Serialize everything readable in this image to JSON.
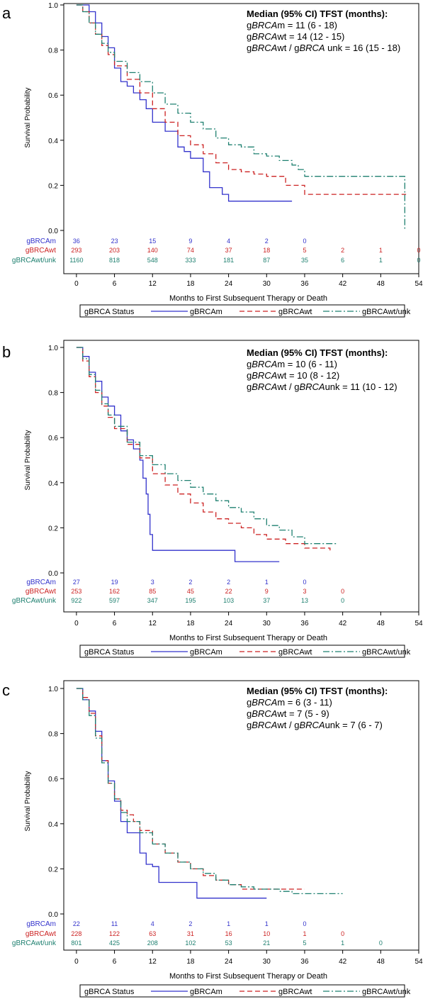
{
  "colors": {
    "gBRCAm": "#3333cc",
    "gBRCAwt": "#cc2222",
    "gBRCAwt_unk": "#1f8070"
  },
  "chart_data": [
    {
      "panel_letter": "a",
      "type": "line",
      "step": true,
      "ylabel": "Survival Probability",
      "xlabel": "Months to First Subsequent Therapy or Death",
      "xlim": [
        -2,
        54
      ],
      "ylim": [
        0,
        1
      ],
      "x_ticks": [
        0,
        6,
        12,
        18,
        24,
        30,
        36,
        42,
        48,
        54
      ],
      "y_ticks": [
        0.0,
        0.2,
        0.4,
        0.6,
        0.8,
        1.0
      ],
      "y_tick_labels": [
        "0.0",
        "0.2",
        "0.4",
        "0.6",
        "0.8",
        "1.0"
      ],
      "median_box": {
        "heading": "Median (95% CI) TFST (months):",
        "lines": [
          [
            "g",
            "BRCA",
            "m = 11 (6 - 18)"
          ],
          [
            "g",
            "BRCA",
            "wt = 14 (12 - 15)"
          ],
          [
            "g",
            "BRCA",
            "wt / g",
            "BRCA",
            " unk = 16 (15 - 18)"
          ]
        ]
      },
      "risk_table": {
        "times": [
          0,
          6,
          12,
          18,
          24,
          30,
          36,
          42,
          48,
          54
        ],
        "rows": [
          {
            "label": "gBRCAm",
            "key": "gBRCAm",
            "values": [
              "36",
              "23",
              "15",
              "9",
              "4",
              "2",
              "0"
            ]
          },
          {
            "label": "gBRCAwt",
            "key": "gBRCAwt",
            "values": [
              "293",
              "203",
              "140",
              "74",
              "37",
              "18",
              "5",
              "2",
              "1",
              "0"
            ]
          },
          {
            "label": "gBRCAwt/unk",
            "key": "gBRCAwt_unk",
            "values": [
              "1160",
              "818",
              "548",
              "333",
              "181",
              "87",
              "35",
              "6",
              "1",
              "0"
            ]
          }
        ]
      },
      "series": [
        {
          "name": "gBRCAm",
          "key": "gBRCAm",
          "dash": "",
          "x": [
            0,
            2,
            3,
            4,
            5,
            6,
            7,
            8,
            9,
            10,
            11,
            12,
            13,
            14,
            15,
            16,
            17,
            18,
            19,
            20,
            21,
            22,
            23,
            24,
            34
          ],
          "y": [
            1.0,
            0.97,
            0.92,
            0.86,
            0.81,
            0.72,
            0.66,
            0.64,
            0.61,
            0.58,
            0.54,
            0.48,
            0.48,
            0.44,
            0.44,
            0.37,
            0.35,
            0.32,
            0.32,
            0.26,
            0.19,
            0.19,
            0.16,
            0.13,
            0.13
          ]
        },
        {
          "name": "gBRCAwt",
          "key": "gBRCAwt",
          "dash": "7,4",
          "x": [
            0,
            1,
            2,
            3,
            4,
            5,
            6,
            8,
            10,
            12,
            14,
            16,
            18,
            20,
            22,
            24,
            26,
            28,
            30,
            33,
            36,
            52
          ],
          "y": [
            1.0,
            0.97,
            0.92,
            0.87,
            0.82,
            0.78,
            0.73,
            0.67,
            0.61,
            0.54,
            0.48,
            0.42,
            0.38,
            0.34,
            0.3,
            0.27,
            0.26,
            0.25,
            0.24,
            0.2,
            0.16,
            0.16
          ]
        },
        {
          "name": "gBRCAwt/unk",
          "key": "gBRCAwt_unk",
          "dash": "9,3,2,3",
          "x": [
            0,
            1,
            2,
            3,
            4,
            5,
            6,
            8,
            10,
            12,
            14,
            16,
            18,
            20,
            22,
            24,
            26,
            28,
            30,
            32,
            34,
            35,
            36,
            51.8,
            51.8
          ],
          "y": [
            1.0,
            0.97,
            0.92,
            0.87,
            0.83,
            0.79,
            0.75,
            0.7,
            0.66,
            0.61,
            0.56,
            0.52,
            0.48,
            0.45,
            0.41,
            0.38,
            0.37,
            0.34,
            0.33,
            0.31,
            0.29,
            0.27,
            0.24,
            0.24,
            0.0
          ]
        }
      ]
    },
    {
      "panel_letter": "b",
      "type": "line",
      "step": true,
      "ylabel": "Survival Probability",
      "xlabel": "Months to First Subsequent Therapy or Death",
      "xlim": [
        -2,
        54
      ],
      "ylim": [
        0,
        1
      ],
      "x_ticks": [
        0,
        6,
        12,
        18,
        24,
        30,
        36,
        42,
        48,
        54
      ],
      "y_ticks": [
        0.0,
        0.2,
        0.4,
        0.6,
        0.8,
        1.0
      ],
      "y_tick_labels": [
        "0.0",
        "0.2",
        "0.4",
        "0.6",
        "0.8",
        "1.0"
      ],
      "median_box": {
        "heading": "Median (95% CI) TFST (months):",
        "lines": [
          [
            "g",
            "BRCA",
            "m = 10 (6 - 11)"
          ],
          [
            "g",
            "BRCA",
            "wt = 10 (8 - 12)"
          ],
          [
            "g",
            "BRCA",
            "wt / g",
            "BRCA",
            "unk = 11 (10 - 12)"
          ]
        ]
      },
      "risk_table": {
        "times": [
          0,
          6,
          12,
          18,
          24,
          30,
          36,
          42,
          48,
          54
        ],
        "rows": [
          {
            "label": "gBRCAm",
            "key": "gBRCAm",
            "values": [
              "27",
              "19",
              "3",
              "2",
              "2",
              "1",
              "0"
            ]
          },
          {
            "label": "gBRCAwt",
            "key": "gBRCAwt",
            "values": [
              "253",
              "162",
              "85",
              "45",
              "22",
              "9",
              "3",
              "0"
            ]
          },
          {
            "label": "gBRCAwt/unk",
            "key": "gBRCAwt_unk",
            "values": [
              "922",
              "597",
              "347",
              "195",
              "103",
              "37",
              "13",
              "0"
            ]
          }
        ]
      },
      "series": [
        {
          "name": "gBRCAm",
          "key": "gBRCAm",
          "dash": "",
          "x": [
            0,
            1,
            2,
            3,
            4,
            5,
            6,
            7,
            8,
            9,
            10,
            10.5,
            11,
            11.3,
            11.6,
            12,
            25,
            32
          ],
          "y": [
            1.0,
            0.96,
            0.89,
            0.85,
            0.78,
            0.74,
            0.7,
            0.63,
            0.59,
            0.55,
            0.5,
            0.42,
            0.35,
            0.26,
            0.17,
            0.1,
            0.05,
            0.05
          ]
        },
        {
          "name": "gBRCAwt",
          "key": "gBRCAwt",
          "dash": "7,4",
          "x": [
            0,
            1,
            2,
            3,
            4,
            5,
            6,
            8,
            10,
            12,
            14,
            16,
            18,
            20,
            22,
            24,
            26,
            28,
            30,
            33,
            36,
            40
          ],
          "y": [
            1.0,
            0.94,
            0.87,
            0.8,
            0.74,
            0.69,
            0.64,
            0.57,
            0.51,
            0.44,
            0.39,
            0.35,
            0.31,
            0.27,
            0.24,
            0.22,
            0.2,
            0.17,
            0.15,
            0.13,
            0.11,
            0.1
          ]
        },
        {
          "name": "gBRCAwt/unk",
          "key": "gBRCAwt_unk",
          "dash": "9,3,2,3",
          "x": [
            0,
            1,
            2,
            3,
            4,
            5,
            6,
            8,
            10,
            12,
            14,
            16,
            18,
            20,
            22,
            24,
            26,
            28,
            30,
            32,
            34,
            36,
            41
          ],
          "y": [
            1.0,
            0.95,
            0.88,
            0.81,
            0.75,
            0.7,
            0.65,
            0.58,
            0.52,
            0.48,
            0.44,
            0.41,
            0.38,
            0.35,
            0.32,
            0.29,
            0.27,
            0.24,
            0.21,
            0.19,
            0.16,
            0.13,
            0.13
          ]
        }
      ]
    },
    {
      "panel_letter": "c",
      "type": "line",
      "step": true,
      "ylabel": "Survival Probability",
      "xlabel": "Months to First Subsequent Therapy or Death",
      "xlim": [
        -2,
        54
      ],
      "ylim": [
        0,
        1
      ],
      "x_ticks": [
        0,
        6,
        12,
        18,
        24,
        30,
        36,
        42,
        48,
        54
      ],
      "y_ticks": [
        0.0,
        0.2,
        0.4,
        0.6,
        0.8,
        1.0
      ],
      "y_tick_labels": [
        "0.0",
        "0.2",
        "0.4",
        "0.6",
        "0.8",
        "1.0"
      ],
      "median_box": {
        "heading": "Median (95% CI) TFST (months):",
        "lines": [
          [
            "g",
            "BRCA",
            "m = 6 (3 - 11)"
          ],
          [
            "g",
            "BRCA",
            "wt = 7 (5 - 9)"
          ],
          [
            "g",
            "BRCA",
            "wt / g",
            "BRCA",
            "unk = 7 (6 - 7)"
          ]
        ]
      },
      "risk_table": {
        "times": [
          0,
          6,
          12,
          18,
          24,
          30,
          36,
          42,
          48,
          54
        ],
        "rows": [
          {
            "label": "gBRCAm",
            "key": "gBRCAm",
            "values": [
              "22",
              "11",
              "4",
              "2",
              "1",
              "1",
              "0"
            ]
          },
          {
            "label": "gBRCAwt",
            "key": "gBRCAwt",
            "values": [
              "228",
              "122",
              "63",
              "31",
              "16",
              "10",
              "1",
              "0"
            ]
          },
          {
            "label": "gBRCAwt/unk",
            "key": "gBRCAwt_unk",
            "values": [
              "801",
              "425",
              "208",
              "102",
              "53",
              "21",
              "5",
              "1",
              "0"
            ]
          }
        ]
      },
      "series": [
        {
          "name": "gBRCAm",
          "key": "gBRCAm",
          "dash": "",
          "x": [
            0,
            1,
            2,
            3,
            4,
            5,
            6,
            7,
            8,
            9,
            10,
            11,
            12,
            13,
            19,
            30
          ],
          "y": [
            1.0,
            0.95,
            0.9,
            0.81,
            0.68,
            0.59,
            0.5,
            0.41,
            0.36,
            0.36,
            0.27,
            0.22,
            0.21,
            0.14,
            0.07,
            0.07
          ]
        },
        {
          "name": "gBRCAwt",
          "key": "gBRCAwt",
          "dash": "7,4",
          "x": [
            0,
            1,
            2,
            3,
            4,
            5,
            6,
            7,
            8,
            9,
            10,
            12,
            14,
            16,
            18,
            20,
            22,
            24,
            26,
            28,
            30,
            36
          ],
          "y": [
            1.0,
            0.96,
            0.89,
            0.79,
            0.68,
            0.58,
            0.51,
            0.46,
            0.44,
            0.41,
            0.37,
            0.31,
            0.27,
            0.23,
            0.2,
            0.17,
            0.15,
            0.13,
            0.11,
            0.11,
            0.11,
            0.11
          ]
        },
        {
          "name": "gBRCAwt/unk",
          "key": "gBRCAwt_unk",
          "dash": "9,3,2,3",
          "x": [
            0,
            1,
            2,
            3,
            4,
            5,
            6,
            7,
            8,
            10,
            12,
            14,
            16,
            18,
            20,
            22,
            24,
            26,
            28,
            30,
            32,
            34,
            42
          ],
          "y": [
            1.0,
            0.95,
            0.88,
            0.78,
            0.67,
            0.58,
            0.51,
            0.45,
            0.41,
            0.36,
            0.31,
            0.27,
            0.23,
            0.2,
            0.18,
            0.15,
            0.13,
            0.12,
            0.11,
            0.11,
            0.1,
            0.09,
            0.09
          ]
        }
      ]
    }
  ],
  "legend": {
    "title": "gBRCA Status",
    "items": [
      {
        "label": "gBRCAm",
        "key": "gBRCAm",
        "dash": ""
      },
      {
        "label": "gBRCAwt",
        "key": "gBRCAwt",
        "dash": "7,4"
      },
      {
        "label": "gBRCAwt/unk",
        "key": "gBRCAwt_unk",
        "dash": "9,3,2,3"
      }
    ]
  }
}
